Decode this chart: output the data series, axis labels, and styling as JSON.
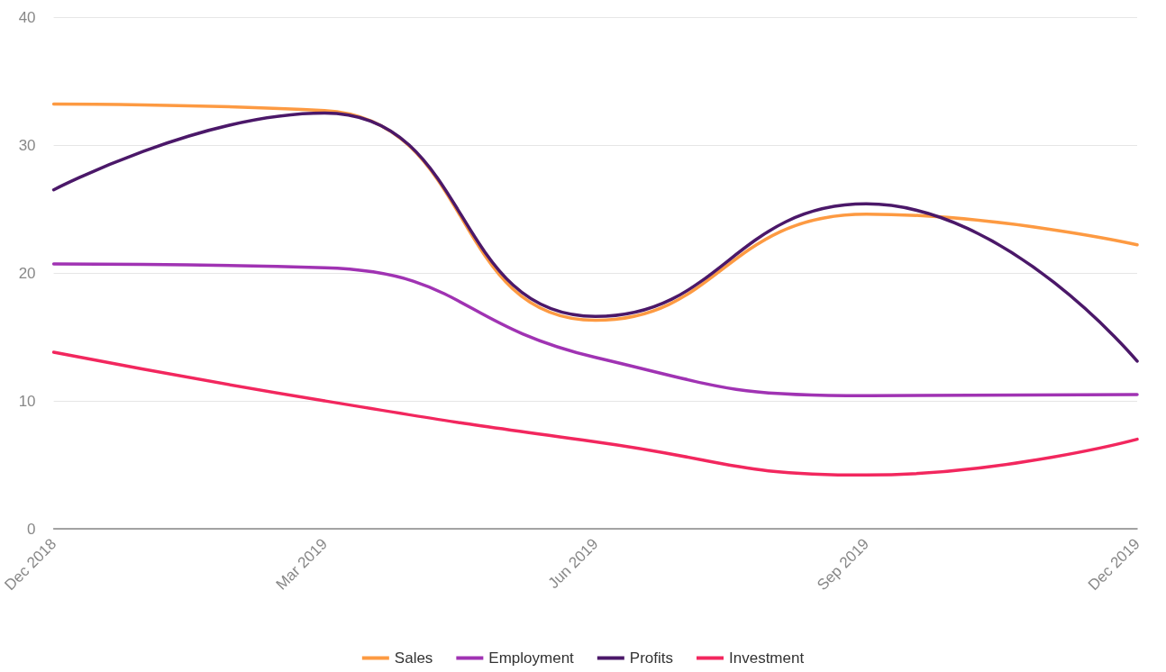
{
  "chart_data": {
    "type": "line",
    "categories": [
      "Dec 2018",
      "Mar 2019",
      "Jun 2019",
      "Sep 2019",
      "Dec 2019"
    ],
    "series": [
      {
        "name": "Sales",
        "color": "#fd9a42",
        "values": [
          33.2,
          32.7,
          16.3,
          24.6,
          22.2
        ]
      },
      {
        "name": "Employment",
        "color": "#a033b3",
        "values": [
          20.7,
          20.4,
          13.4,
          10.4,
          10.5
        ]
      },
      {
        "name": "Profits",
        "color": "#4b1869",
        "values": [
          26.5,
          32.5,
          16.6,
          25.4,
          13.1
        ]
      },
      {
        "name": "Investment",
        "color": "#f2275e",
        "values": [
          13.8,
          10.0,
          6.8,
          4.2,
          7.0
        ]
      }
    ],
    "ylim": [
      0,
      40
    ],
    "yticks": [
      0,
      10,
      20,
      30,
      40
    ],
    "grid": "y",
    "legend": "bottom",
    "marker": "none",
    "line_style": "solid"
  }
}
